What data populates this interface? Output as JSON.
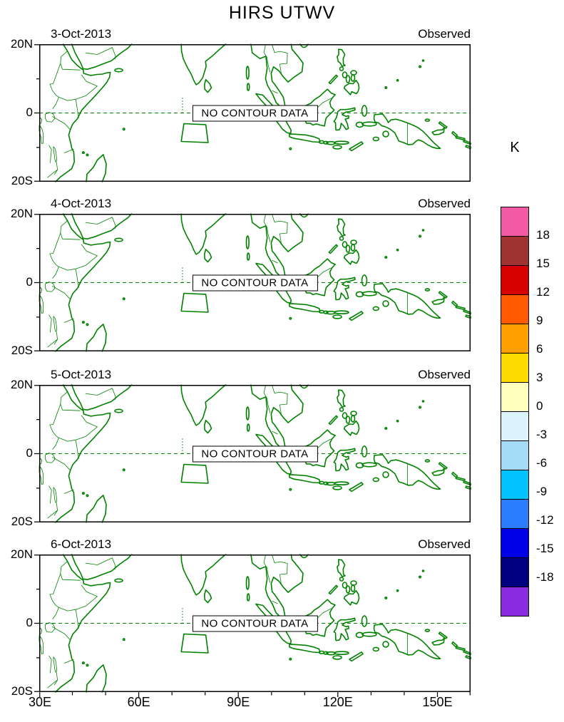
{
  "title": "HIRS UTWV",
  "panels": [
    {
      "date": "3-Oct-2013",
      "source": "Observed",
      "no_data": "NO CONTOUR DATA"
    },
    {
      "date": "4-Oct-2013",
      "source": "Observed",
      "no_data": "NO CONTOUR DATA"
    },
    {
      "date": "5-Oct-2013",
      "source": "Observed",
      "no_data": "NO CONTOUR DATA"
    },
    {
      "date": "6-Oct-2013",
      "source": "Observed",
      "no_data": "NO CONTOUR DATA"
    }
  ],
  "x_axis": {
    "ticks": [
      "30E",
      "60E",
      "90E",
      "120E",
      "150E"
    ]
  },
  "y_axis": {
    "ticks": [
      "20N",
      "0",
      "20S"
    ]
  },
  "colorbar": {
    "unit": "K",
    "labels": [
      "18",
      "15",
      "12",
      "9",
      "6",
      "3",
      "0",
      "-3",
      "-6",
      "-9",
      "-12",
      "-15",
      "-18"
    ],
    "colors": [
      "#F35AA5",
      "#A03232",
      "#D70000",
      "#FF5A00",
      "#FFA000",
      "#FFDC00",
      "#FFFFBE",
      "#DCF3FB",
      "#A5DCF5",
      "#00C3FF",
      "#2B7DFF",
      "#0000E6",
      "#000080",
      "#8A2BE2"
    ]
  },
  "map": {
    "line_color": "#008200",
    "frame_color": "#000000"
  },
  "chart_data": {
    "type": "map",
    "title": "HIRS UTWV",
    "panel_dates": [
      "3-Oct-2013",
      "4-Oct-2013",
      "5-Oct-2013",
      "6-Oct-2013"
    ],
    "panel_label": "Observed",
    "panel_status": "NO CONTOUR DATA",
    "x_axis": {
      "ticks": [
        "30E",
        "60E",
        "90E",
        "120E",
        "150E"
      ],
      "range_deg_east": [
        30,
        160
      ]
    },
    "y_axis": {
      "ticks": [
        "20N",
        "0",
        "20S"
      ],
      "range_deg_north": [
        -20,
        20
      ]
    },
    "colorbar": {
      "unit": "K",
      "tick_values": [
        18,
        15,
        12,
        9,
        6,
        3,
        0,
        -3,
        -6,
        -9,
        -12,
        -15,
        -18
      ],
      "colors_top_to_bottom": [
        "#F35AA5",
        "#A03232",
        "#D70000",
        "#FF5A00",
        "#FFA000",
        "#FFDC00",
        "#FFFFBE",
        "#DCF3FB",
        "#A5DCF5",
        "#00C3FF",
        "#2B7DFF",
        "#0000E6",
        "#000080",
        "#8A2BE2"
      ]
    },
    "series": []
  }
}
